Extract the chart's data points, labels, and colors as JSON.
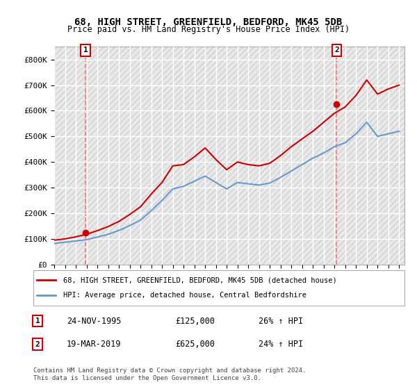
{
  "title": "68, HIGH STREET, GREENFIELD, BEDFORD, MK45 5DB",
  "subtitle": "Price paid vs. HM Land Registry's House Price Index (HPI)",
  "legend_line1": "68, HIGH STREET, GREENFIELD, BEDFORD, MK45 5DB (detached house)",
  "legend_line2": "HPI: Average price, detached house, Central Bedfordshire",
  "footer": "Contains HM Land Registry data © Crown copyright and database right 2024.\nThis data is licensed under the Open Government Licence v3.0.",
  "transaction1_label": "1",
  "transaction1_date": "24-NOV-1995",
  "transaction1_price": "£125,000",
  "transaction1_hpi": "26% ↑ HPI",
  "transaction2_label": "2",
  "transaction2_date": "19-MAR-2019",
  "transaction2_price": "£625,000",
  "transaction2_hpi": "24% ↑ HPI",
  "background_color": "#ffffff",
  "plot_bg_color": "#f0f0f0",
  "grid_color": "#ffffff",
  "red_line_color": "#cc0000",
  "blue_line_color": "#6699cc",
  "dashed_color": "#ff6666",
  "marker_color": "#cc0000",
  "annotation_box_color": "#cc0000",
  "ylim": [
    0,
    850000
  ],
  "yticks": [
    0,
    100000,
    200000,
    300000,
    400000,
    500000,
    600000,
    700000,
    800000
  ],
  "ytick_labels": [
    "£0",
    "£100K",
    "£200K",
    "£300K",
    "£400K",
    "£500K",
    "£600K",
    "£700K",
    "£800K"
  ],
  "xlim_start": 1993.0,
  "xlim_end": 2025.5,
  "transaction1_x": 1995.9,
  "transaction1_y": 125000,
  "transaction2_x": 2019.21,
  "transaction2_y": 625000,
  "hpi_data_x": [
    1993,
    1994,
    1995,
    1996,
    1997,
    1998,
    1999,
    2000,
    2001,
    2002,
    2003,
    2004,
    2005,
    2006,
    2007,
    2008,
    2009,
    2010,
    2011,
    2012,
    2013,
    2014,
    2015,
    2016,
    2017,
    2018,
    2019,
    2020,
    2021,
    2022,
    2023,
    2024,
    2025
  ],
  "hpi_data_y": [
    82000,
    87000,
    92000,
    97000,
    107000,
    118000,
    133000,
    152000,
    173000,
    210000,
    250000,
    295000,
    305000,
    325000,
    345000,
    320000,
    295000,
    320000,
    315000,
    310000,
    318000,
    340000,
    365000,
    390000,
    415000,
    435000,
    460000,
    475000,
    510000,
    555000,
    500000,
    510000,
    520000
  ],
  "price_data_x": [
    1993,
    1994,
    1995,
    1996,
    1997,
    1998,
    1999,
    2000,
    2001,
    2002,
    2003,
    2004,
    2005,
    2006,
    2007,
    2008,
    2009,
    2010,
    2011,
    2012,
    2013,
    2014,
    2015,
    2016,
    2017,
    2018,
    2019,
    2020,
    2021,
    2022,
    2023,
    2024,
    2025
  ],
  "price_data_y": [
    95000,
    100000,
    108000,
    118000,
    132000,
    148000,
    168000,
    195000,
    225000,
    275000,
    320000,
    385000,
    390000,
    420000,
    455000,
    410000,
    370000,
    400000,
    390000,
    385000,
    395000,
    425000,
    460000,
    490000,
    520000,
    555000,
    590000,
    615000,
    660000,
    720000,
    665000,
    685000,
    700000
  ]
}
